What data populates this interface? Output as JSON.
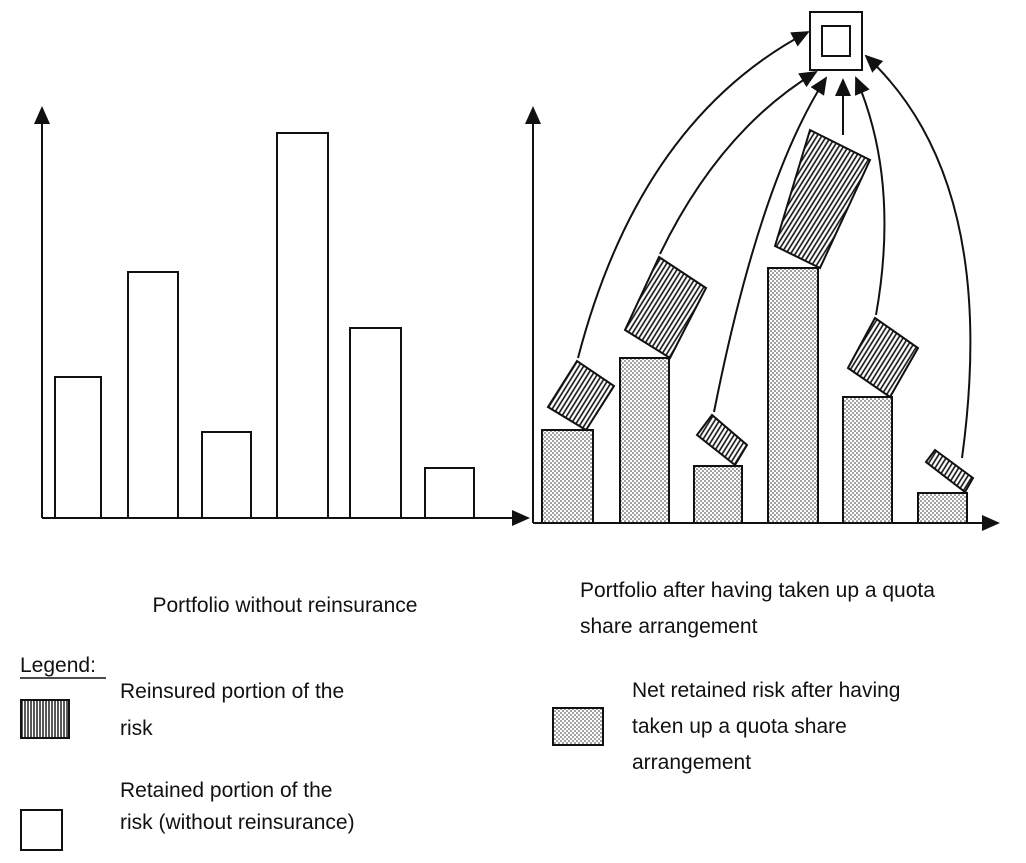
{
  "left_chart": {
    "caption": "Portfolio without reinsurance"
  },
  "right_chart": {
    "caption": [
      "Portfolio after having taken up a quota",
      "share arrangement"
    ]
  },
  "legend": {
    "title": "Legend:",
    "items": [
      {
        "label": [
          "Reinsured portion of the",
          "risk"
        ]
      },
      {
        "label": [
          "Net retained risk after having",
          "taken up a quota share",
          "arrangement"
        ]
      },
      {
        "label": [
          "Retained portion of the",
          "risk (without reinsurance)"
        ]
      }
    ]
  }
}
